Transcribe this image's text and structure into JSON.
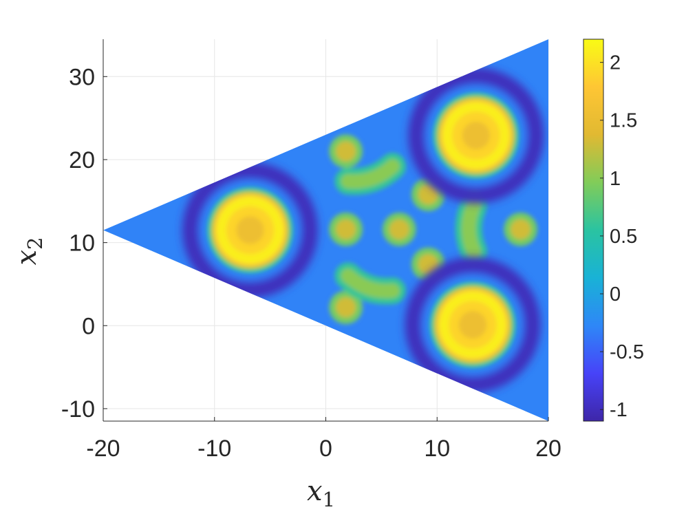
{
  "chart_data": {
    "type": "heatmap",
    "title": "",
    "xlabel": "x",
    "xlabel_subscript": "1",
    "ylabel": "x",
    "ylabel_subscript": "2",
    "xlim": [
      -20,
      20
    ],
    "ylim": [
      -11.5,
      34.5
    ],
    "xticks": [
      -20,
      -10,
      0,
      10,
      20
    ],
    "xtick_labels": [
      "-20",
      "-10",
      "0",
      "10",
      "20"
    ],
    "yticks": [
      -10,
      0,
      10,
      20,
      30
    ],
    "ytick_labels": [
      "-10",
      "0",
      "10",
      "20",
      "30"
    ],
    "grid": true,
    "domain_shape": "triangle",
    "domain_vertices": [
      [
        -20,
        11.5
      ],
      [
        20,
        34.5
      ],
      [
        20,
        -11.5
      ]
    ],
    "colormap": "parula",
    "colormap_stops": [
      "#3e26a8",
      "#4743f8",
      "#2e87f7",
      "#19b2d6",
      "#2ac3a1",
      "#81cc59",
      "#e1b932",
      "#fec634",
      "#f9fb15"
    ],
    "clim": [
      -1.1,
      2.2
    ],
    "colorbar_ticks": [
      2,
      1.5,
      1,
      0.5,
      0,
      -0.5,
      -1
    ],
    "colorbar_tick_labels": [
      "2",
      "1.5",
      "1",
      "0.5",
      "0",
      "-0.5",
      "-1"
    ],
    "background_level": -0.3,
    "features": [
      {
        "kind": "ring",
        "x": -6.8,
        "y": 11.5,
        "r": 3.9,
        "value": 2.1
      },
      {
        "kind": "ring",
        "x": 13.5,
        "y": 22.9,
        "r": 3.9,
        "value": 2.1
      },
      {
        "kind": "ring",
        "x": 13.2,
        "y": 0.1,
        "r": 3.9,
        "value": 2.1
      },
      {
        "kind": "dark_ring",
        "x": -6.8,
        "y": 11.5,
        "r": 5.4,
        "value": -1.0
      },
      {
        "kind": "dark_ring",
        "x": 13.5,
        "y": 22.9,
        "r": 5.4,
        "value": -1.0
      },
      {
        "kind": "dark_ring",
        "x": 13.2,
        "y": 0.1,
        "r": 5.4,
        "value": -1.0
      },
      {
        "kind": "blob",
        "x": 1.8,
        "y": 21.0,
        "value": 1.3
      },
      {
        "kind": "blob",
        "x": 1.8,
        "y": 2.2,
        "value": 1.3
      },
      {
        "kind": "blob",
        "x": 1.8,
        "y": 11.6,
        "value": 1.3
      },
      {
        "kind": "blob",
        "x": 6.6,
        "y": 11.6,
        "value": 1.3
      },
      {
        "kind": "blob",
        "x": 9.2,
        "y": 15.8,
        "value": 1.3
      },
      {
        "kind": "blob",
        "x": 9.2,
        "y": 7.4,
        "value": 1.3
      },
      {
        "kind": "blob",
        "x": 17.5,
        "y": 11.6,
        "value": 1.3
      },
      {
        "kind": "arc",
        "x": 2.0,
        "y": 17.4,
        "x2": 6.0,
        "y2": 19.2,
        "value": 1.0
      },
      {
        "kind": "arc",
        "x": 2.0,
        "y": 6.0,
        "x2": 6.0,
        "y2": 4.2,
        "value": 1.0
      },
      {
        "kind": "arc",
        "x": 13.3,
        "y": 14.5,
        "x2": 13.3,
        "y2": 8.9,
        "value": 1.0
      }
    ]
  }
}
